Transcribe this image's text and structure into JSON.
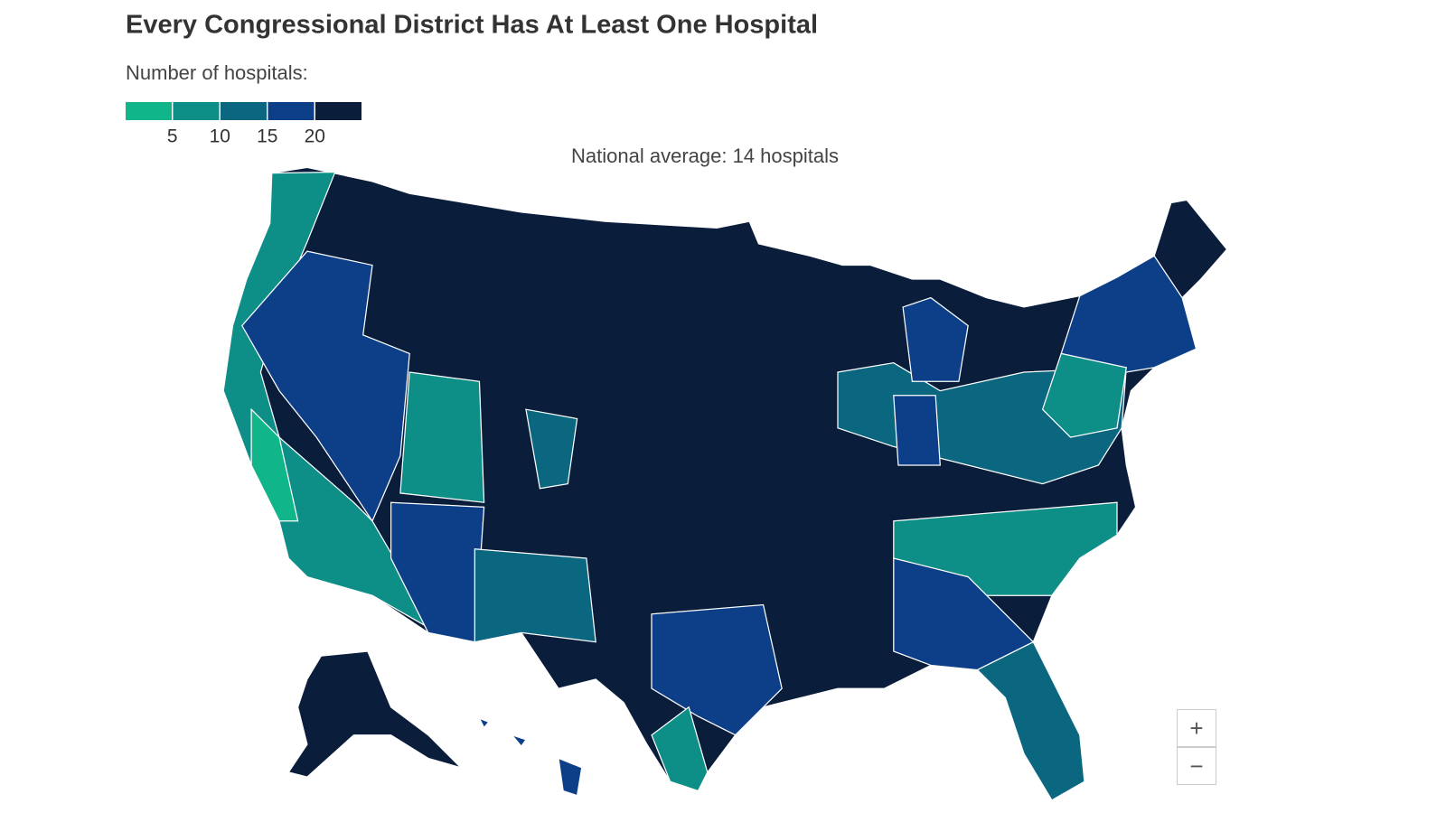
{
  "title": "Every Congressional District Has At Least One Hospital",
  "legend": {
    "label": "Number of hospitals:",
    "colors": [
      "#11b58a",
      "#0d8e86",
      "#0b6780",
      "#0d3f88",
      "#0a1d3b"
    ],
    "ticks": [
      5,
      10,
      15,
      20
    ]
  },
  "annotation": "National average: 14 hospitals",
  "controls": {
    "zoom_in": "+",
    "zoom_out": "−"
  }
}
